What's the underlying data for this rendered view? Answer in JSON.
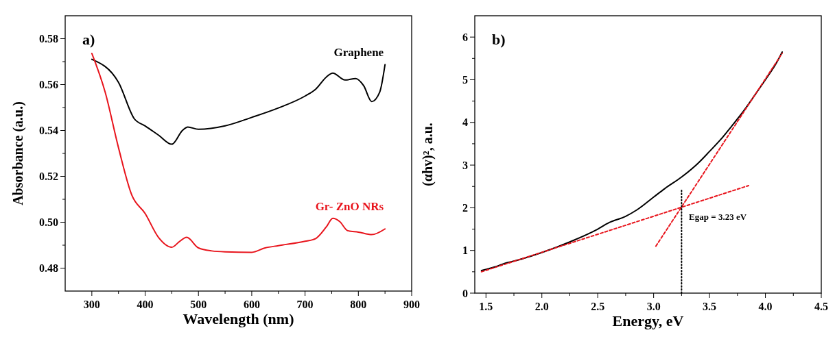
{
  "chart_data": [
    {
      "type": "line",
      "xlabel": "Wavelength (nm)",
      "ylabel": "Absorbance (a.u.)",
      "xlim": [
        250,
        900
      ],
      "ylim": [
        0.47,
        0.59
      ],
      "xticks": [
        300,
        {
          "value": 350,
          "label": null
        },
        400,
        {
          "value": 450,
          "label": null
        },
        500,
        {
          "value": 550,
          "label": null
        },
        600,
        {
          "value": 650,
          "label": null
        },
        700,
        {
          "value": 750,
          "label": null
        },
        800,
        {
          "value": 850,
          "label": null
        },
        900
      ],
      "yticks": [
        0.48,
        {
          "value": 0.49,
          "label": null
        },
        {
          "value": 0.5,
          "label": "0.50"
        },
        {
          "value": 0.51,
          "label": null
        },
        0.52,
        {
          "value": 0.53,
          "label": null
        },
        0.54,
        {
          "value": 0.55,
          "label": null
        },
        0.56,
        {
          "value": 0.57,
          "label": null
        },
        0.58
      ],
      "annotations": [
        "a)"
      ],
      "series": [
        {
          "name": "Graphene",
          "color": "#000000",
          "x": [
            300,
            350,
            380,
            400,
            425,
            450,
            470,
            480,
            500,
            550,
            600,
            650,
            700,
            720,
            740,
            752,
            775,
            795,
            810,
            825,
            840,
            850
          ],
          "values": [
            0.571,
            0.561,
            0.545,
            0.542,
            0.538,
            0.534,
            0.54,
            0.5415,
            0.5405,
            0.542,
            0.5457,
            0.5498,
            0.555,
            0.558,
            0.5633,
            0.565,
            0.562,
            0.5626,
            0.5595,
            0.5526,
            0.5567,
            0.5687
          ]
        },
        {
          "name": "Gr- ZnO NRs",
          "color": "#e8141c",
          "x": [
            300,
            325,
            350,
            375,
            400,
            425,
            450,
            465,
            478,
            500,
            525,
            550,
            600,
            625,
            650,
            700,
            720,
            740,
            752,
            765,
            780,
            800,
            825,
            850
          ],
          "values": [
            0.5736,
            0.5567,
            0.5325,
            0.5118,
            0.5038,
            0.4934,
            0.4891,
            0.4917,
            0.4934,
            0.4888,
            0.4875,
            0.4871,
            0.4869,
            0.4888,
            0.4898,
            0.4917,
            0.4929,
            0.498,
            0.5017,
            0.5003,
            0.4963,
            0.4957,
            0.4946,
            0.4971
          ]
        }
      ]
    },
    {
      "type": "line",
      "xlabel": "Energy, eV",
      "ylabel": "(αhv)², a.u.",
      "xlim": [
        1.4,
        4.5
      ],
      "ylim": [
        0,
        6.5
      ],
      "xticks": [
        {
          "value": 1.5,
          "label": "1.5"
        },
        {
          "value": 1.75,
          "label": null
        },
        {
          "value": 2,
          "label": "2.0"
        },
        {
          "value": 2.25,
          "label": null
        },
        {
          "value": 2.5,
          "label": "2.5"
        },
        {
          "value": 2.75,
          "label": null
        },
        {
          "value": 3,
          "label": "3.0"
        },
        {
          "value": 3.25,
          "label": null
        },
        {
          "value": 3.5,
          "label": "3.5"
        },
        {
          "value": 3.75,
          "label": null
        },
        {
          "value": 4,
          "label": "4.0"
        },
        {
          "value": 4.25,
          "label": null
        },
        {
          "value": 4.5,
          "label": "4.5"
        }
      ],
      "yticks": [
        0,
        {
          "value": 0.5,
          "label": null
        },
        1,
        {
          "value": 1.5,
          "label": null
        },
        2,
        {
          "value": 2.5,
          "label": null
        },
        3,
        {
          "value": 3.5,
          "label": null
        },
        4,
        {
          "value": 4.5,
          "label": null
        },
        5,
        {
          "value": 5.5,
          "label": null
        },
        6
      ],
      "annotations": [
        "b)",
        {
          "text": "Egap = 3.23 eV",
          "x": 3.23,
          "y": 2.0
        }
      ],
      "series": [
        {
          "color": "#000000",
          "x": [
            1.46,
            1.6,
            1.67,
            1.75,
            2.0,
            2.25,
            2.5,
            2.6,
            2.75,
            2.85,
            3.0,
            3.1,
            3.25,
            3.4,
            3.5,
            3.6,
            3.7,
            3.8,
            3.9,
            4.0,
            4.1,
            4.15
          ],
          "values": [
            0.53,
            0.63,
            0.7,
            0.75,
            0.95,
            1.2,
            1.5,
            1.65,
            1.8,
            1.95,
            2.25,
            2.45,
            2.72,
            3.05,
            3.32,
            3.6,
            3.92,
            4.25,
            4.62,
            5.0,
            5.4,
            5.65
          ]
        },
        {
          "color": "#e8141c",
          "line_style": "dashed",
          "x": [
            1.46,
            3.85
          ],
          "values": [
            0.5,
            2.52
          ]
        },
        {
          "color": "#e8141c",
          "line_style": "dashed",
          "x": [
            3.02,
            4.15
          ],
          "values": [
            1.1,
            5.62
          ]
        },
        {
          "color": "#000000",
          "line_style": "dotted",
          "x": [
            3.25,
            3.25
          ],
          "values": [
            0,
            2.45
          ]
        }
      ]
    }
  ]
}
